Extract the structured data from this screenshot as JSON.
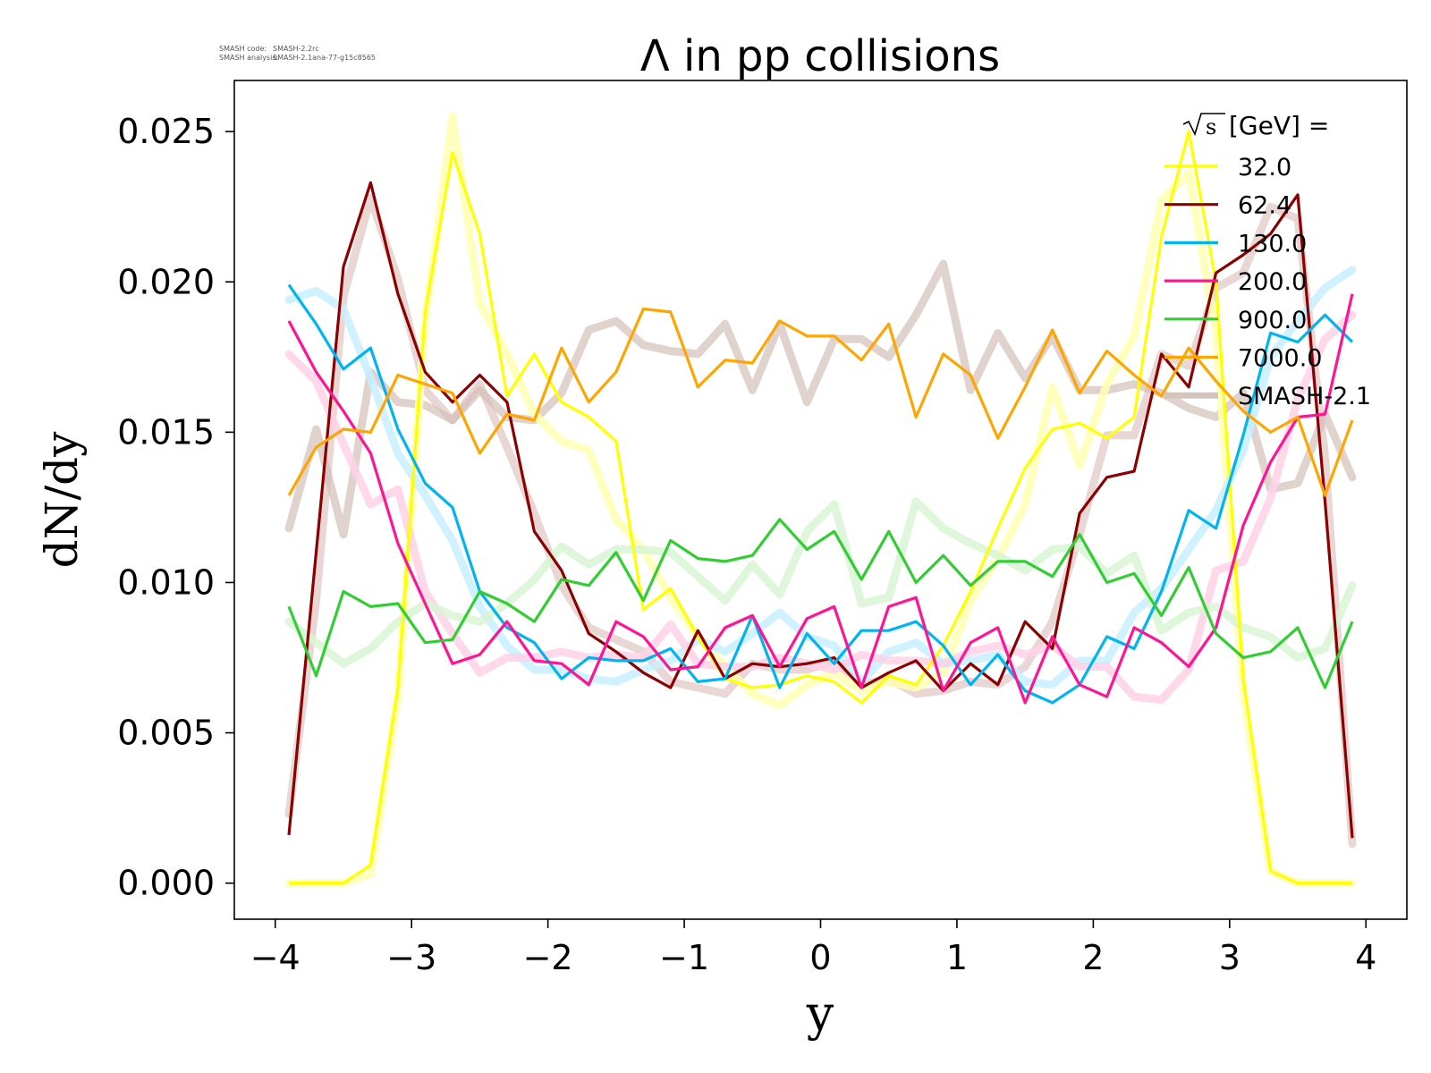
{
  "watermark": {
    "code_label": "SMASH code:",
    "code_value": "SMASH-2.2rc",
    "analysis_label": "SMASH analysis:",
    "analysis_value": "SMASH-2.1ana-77-g15c8565"
  },
  "chart_data": {
    "type": "line",
    "title": "Λ in pp collisions",
    "xlabel": "y",
    "ylabel": "dN/dy",
    "xlim": [
      -4.3,
      4.3
    ],
    "ylim": [
      -0.0012,
      0.0267
    ],
    "xticks": [
      -4,
      -3,
      -2,
      -1,
      0,
      1,
      2,
      3,
      4
    ],
    "xtick_labels": [
      "−4",
      "−3",
      "−2",
      "−1",
      "0",
      "1",
      "2",
      "3",
      "4"
    ],
    "yticks": [
      0.0,
      0.005,
      0.01,
      0.015,
      0.02,
      0.025
    ],
    "ytick_labels": [
      "0.000",
      "0.005",
      "0.010",
      "0.015",
      "0.020",
      "0.025"
    ],
    "grid": false,
    "legend": {
      "placement": "top-right",
      "title_sqrt": "s",
      "title_rest": " [GeV] =",
      "reference_label": "SMASH-2.1",
      "reference_color": "#d5c4bd"
    },
    "x": [
      -3.9,
      -3.7,
      -3.5,
      -3.3,
      -3.1,
      -2.9,
      -2.7,
      -2.5,
      -2.3,
      -2.1,
      -1.9,
      -1.7,
      -1.5,
      -1.3,
      -1.1,
      -0.9,
      -0.7,
      -0.5,
      -0.3,
      -0.1,
      0.1,
      0.3,
      0.5,
      0.7,
      0.9,
      1.1,
      1.3,
      1.5,
      1.7,
      1.9,
      2.1,
      2.3,
      2.5,
      2.7,
      2.9,
      3.1,
      3.3,
      3.5,
      3.7,
      3.9
    ],
    "series": [
      {
        "name": "32.0",
        "color": "#ffff00",
        "values": [
          0.0,
          0.0,
          0.0,
          0.0006,
          0.0065,
          0.019,
          0.0243,
          0.0216,
          0.0162,
          0.0176,
          0.016,
          0.0155,
          0.0147,
          0.0091,
          0.0098,
          0.0082,
          0.0068,
          0.0065,
          0.0066,
          0.0069,
          0.0067,
          0.006,
          0.0069,
          0.0066,
          0.0079,
          0.0097,
          0.0118,
          0.0138,
          0.0151,
          0.0153,
          0.0148,
          0.0155,
          0.0215,
          0.025,
          0.02,
          0.0068,
          0.0004,
          0.0,
          0.0,
          0.0
        ]
      },
      {
        "name": "62.4",
        "color": "#8b0000",
        "values": [
          0.0016,
          0.011,
          0.0205,
          0.0233,
          0.0196,
          0.017,
          0.016,
          0.0169,
          0.016,
          0.0117,
          0.0104,
          0.0083,
          0.0077,
          0.007,
          0.0065,
          0.0084,
          0.0068,
          0.0073,
          0.0072,
          0.0073,
          0.0075,
          0.0065,
          0.007,
          0.0074,
          0.0064,
          0.0073,
          0.0066,
          0.0087,
          0.0078,
          0.0123,
          0.0135,
          0.0137,
          0.0176,
          0.0165,
          0.0203,
          0.0209,
          0.0216,
          0.0229,
          0.0127,
          0.0015
        ]
      },
      {
        "name": "130.0",
        "color": "#00b4f0",
        "values": [
          0.0199,
          0.0186,
          0.0171,
          0.0178,
          0.0151,
          0.0133,
          0.0125,
          0.0097,
          0.0085,
          0.008,
          0.0068,
          0.0075,
          0.0074,
          0.0074,
          0.0078,
          0.0067,
          0.0068,
          0.0089,
          0.0065,
          0.0083,
          0.0073,
          0.0084,
          0.0084,
          0.0087,
          0.0079,
          0.0066,
          0.0076,
          0.0064,
          0.006,
          0.0066,
          0.0082,
          0.0078,
          0.0097,
          0.0124,
          0.0118,
          0.0149,
          0.0183,
          0.018,
          0.0189,
          0.018
        ]
      },
      {
        "name": "200.0",
        "color": "#ff1493",
        "values": [
          0.0187,
          0.017,
          0.0157,
          0.0143,
          0.0113,
          0.0093,
          0.0073,
          0.0076,
          0.0087,
          0.0074,
          0.0073,
          0.0066,
          0.0087,
          0.0082,
          0.0071,
          0.0072,
          0.0085,
          0.0089,
          0.0072,
          0.0088,
          0.0092,
          0.0065,
          0.0092,
          0.0095,
          0.0064,
          0.008,
          0.0085,
          0.006,
          0.0082,
          0.0066,
          0.0062,
          0.0085,
          0.008,
          0.0072,
          0.0085,
          0.0119,
          0.014,
          0.0155,
          0.0156,
          0.0196
        ]
      },
      {
        "name": "900.0",
        "color": "#32cd32",
        "values": [
          0.0092,
          0.0069,
          0.0097,
          0.0092,
          0.0093,
          0.008,
          0.0081,
          0.0097,
          0.0093,
          0.0087,
          0.0101,
          0.0099,
          0.011,
          0.0094,
          0.0114,
          0.0108,
          0.0107,
          0.0109,
          0.0121,
          0.0111,
          0.0117,
          0.0101,
          0.0117,
          0.01,
          0.0109,
          0.0099,
          0.0107,
          0.0107,
          0.0102,
          0.0116,
          0.01,
          0.0103,
          0.0089,
          0.0105,
          0.0083,
          0.0075,
          0.0077,
          0.0085,
          0.0065,
          0.0087
        ]
      },
      {
        "name": "7000.0",
        "color": "#ffa500",
        "values": [
          0.0129,
          0.0145,
          0.0151,
          0.015,
          0.0169,
          0.0166,
          0.0163,
          0.0143,
          0.0156,
          0.0154,
          0.0178,
          0.016,
          0.017,
          0.0191,
          0.019,
          0.0165,
          0.0174,
          0.0173,
          0.0187,
          0.0182,
          0.0182,
          0.0174,
          0.0186,
          0.0155,
          0.0176,
          0.0169,
          0.0148,
          0.0165,
          0.0184,
          0.0163,
          0.0177,
          0.0169,
          0.0162,
          0.0178,
          0.0167,
          0.0157,
          0.015,
          0.0155,
          0.0129,
          0.0154
        ]
      }
    ],
    "reference_series": [
      {
        "color": "#d5c4bd",
        "opacity": 0.75,
        "values": [
          0.0118,
          0.0151,
          0.0116,
          0.017,
          0.016,
          0.0159,
          0.0154,
          0.0164,
          0.0155,
          0.0154,
          0.0163,
          0.0184,
          0.0187,
          0.0179,
          0.0177,
          0.0176,
          0.0186,
          0.0164,
          0.0186,
          0.016,
          0.0181,
          0.0181,
          0.0175,
          0.0189,
          0.0206,
          0.0164,
          0.0183,
          0.0168,
          0.0182,
          0.0164,
          0.0164,
          0.0166,
          0.0163,
          0.0158,
          0.0155,
          0.0163,
          0.0131,
          0.0133,
          0.0156,
          0.0135
        ]
      },
      {
        "color": "#d9bdb8",
        "opacity": 0.6,
        "values": [
          0.0023,
          0.0094,
          0.0195,
          0.0228,
          0.0201,
          0.0164,
          0.0154,
          0.0166,
          0.0145,
          0.0123,
          0.0099,
          0.0085,
          0.0081,
          0.0077,
          0.0067,
          0.0065,
          0.0063,
          0.0073,
          0.0071,
          0.0071,
          0.0074,
          0.0066,
          0.0068,
          0.0063,
          0.0064,
          0.0067,
          0.0066,
          0.0072,
          0.0087,
          0.0116,
          0.0149,
          0.0149,
          0.0176,
          0.0172,
          0.0198,
          0.0203,
          0.0225,
          0.0221,
          0.0142,
          0.0013
        ]
      },
      {
        "color": "#ffffb3",
        "opacity": 0.85,
        "values": [
          0.0,
          0.0,
          0.0,
          0.0003,
          0.0062,
          0.0187,
          0.0255,
          0.0193,
          0.0176,
          0.0156,
          0.0147,
          0.0144,
          0.0121,
          0.0111,
          0.0095,
          0.0082,
          0.0072,
          0.0063,
          0.0059,
          0.0066,
          0.007,
          0.0064,
          0.0067,
          0.0065,
          0.007,
          0.0094,
          0.0108,
          0.0126,
          0.0165,
          0.0139,
          0.0166,
          0.0182,
          0.0227,
          0.0236,
          0.0183,
          0.0063,
          0.0004,
          0.0,
          0.0,
          0.0
        ]
      },
      {
        "color": "#c8efff",
        "opacity": 0.85,
        "values": [
          0.0194,
          0.0197,
          0.0191,
          0.0168,
          0.0143,
          0.0129,
          0.0114,
          0.0092,
          0.0079,
          0.0071,
          0.0071,
          0.0068,
          0.0067,
          0.0071,
          0.0074,
          0.0081,
          0.0077,
          0.0083,
          0.009,
          0.0082,
          0.0079,
          0.0067,
          0.0077,
          0.008,
          0.0073,
          0.0074,
          0.0076,
          0.0067,
          0.0066,
          0.0074,
          0.0074,
          0.009,
          0.0098,
          0.0111,
          0.0124,
          0.0144,
          0.0175,
          0.0187,
          0.0198,
          0.0204
        ]
      },
      {
        "color": "#ffd1e6",
        "opacity": 0.85,
        "values": [
          0.0176,
          0.0167,
          0.0146,
          0.0126,
          0.0131,
          0.0097,
          0.0083,
          0.007,
          0.0075,
          0.0075,
          0.0077,
          0.0075,
          0.0076,
          0.0075,
          0.0086,
          0.0073,
          0.0072,
          0.0072,
          0.0075,
          0.0073,
          0.0071,
          0.0076,
          0.0074,
          0.0074,
          0.0073,
          0.0077,
          0.0079,
          0.0076,
          0.0079,
          0.0072,
          0.0072,
          0.0062,
          0.0061,
          0.0071,
          0.0104,
          0.0107,
          0.0128,
          0.0161,
          0.0181,
          0.0189
        ]
      },
      {
        "color": "#d8f5d4",
        "opacity": 0.85,
        "values": [
          0.0087,
          0.008,
          0.0073,
          0.0078,
          0.0087,
          0.0093,
          0.0089,
          0.0087,
          0.0093,
          0.0101,
          0.0112,
          0.0106,
          0.0111,
          0.0111,
          0.011,
          0.0102,
          0.0094,
          0.0106,
          0.0096,
          0.0117,
          0.0126,
          0.0093,
          0.0095,
          0.0127,
          0.0118,
          0.0113,
          0.0109,
          0.0104,
          0.0111,
          0.0112,
          0.0103,
          0.0109,
          0.0084,
          0.009,
          0.0092,
          0.0085,
          0.0082,
          0.0075,
          0.0078,
          0.0099
        ]
      }
    ]
  }
}
